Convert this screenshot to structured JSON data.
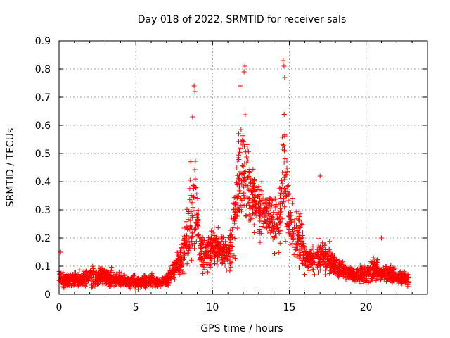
{
  "chart_data": {
    "type": "scatter",
    "title": "Day 018 of 2022, SRMTID for receiver sals",
    "xlabel": "GPS time / hours",
    "ylabel": "SRMTID / TECUs",
    "xlim": [
      0,
      24
    ],
    "ylim": [
      0,
      0.9
    ],
    "xticks": [
      0,
      5,
      10,
      15,
      20
    ],
    "xtick_labels": [
      "0",
      "5",
      "10",
      "15",
      "20"
    ],
    "yticks": [
      0,
      0.1,
      0.2,
      0.3,
      0.4,
      0.5,
      0.6,
      0.7,
      0.8,
      0.9
    ],
    "ytick_labels": [
      "0",
      "0.1",
      "0.2",
      "0.3",
      "0.4",
      "0.5",
      "0.6",
      "0.7",
      "0.8",
      "0.9"
    ],
    "grid": true,
    "marker": "+",
    "series_color": "#ff0000",
    "envelope": {
      "x": [
        0,
        0.2,
        1,
        2,
        3,
        4,
        5,
        6,
        6.5,
        7,
        7.5,
        8,
        8.3,
        8.6,
        8.9,
        9.2,
        9.6,
        10,
        10.5,
        11,
        11.4,
        11.8,
        12.1,
        12.5,
        13,
        13.5,
        14,
        14.4,
        14.7,
        15,
        15.3,
        15.7,
        16,
        16.5,
        17,
        17.5,
        18,
        19,
        20,
        20.5,
        21,
        21.5,
        22,
        22.5,
        22.8
      ],
      "center": [
        0.06,
        0.05,
        0.05,
        0.06,
        0.06,
        0.05,
        0.04,
        0.05,
        0.04,
        0.05,
        0.09,
        0.12,
        0.2,
        0.3,
        0.35,
        0.15,
        0.14,
        0.17,
        0.17,
        0.13,
        0.25,
        0.45,
        0.45,
        0.35,
        0.3,
        0.3,
        0.25,
        0.3,
        0.45,
        0.25,
        0.22,
        0.2,
        0.13,
        0.12,
        0.13,
        0.14,
        0.1,
        0.07,
        0.07,
        0.09,
        0.07,
        0.08,
        0.06,
        0.06,
        0.05
      ],
      "spread": [
        0.03,
        0.02,
        0.02,
        0.03,
        0.03,
        0.02,
        0.02,
        0.02,
        0.01,
        0.02,
        0.03,
        0.05,
        0.08,
        0.15,
        0.15,
        0.05,
        0.05,
        0.06,
        0.05,
        0.04,
        0.12,
        0.15,
        0.17,
        0.1,
        0.08,
        0.07,
        0.08,
        0.12,
        0.18,
        0.1,
        0.1,
        0.08,
        0.04,
        0.04,
        0.05,
        0.05,
        0.03,
        0.02,
        0.03,
        0.04,
        0.02,
        0.03,
        0.02,
        0.02,
        0.02
      ]
    },
    "peaks": [
      {
        "x": 8.8,
        "y": 0.74
      },
      {
        "x": 8.85,
        "y": 0.72
      },
      {
        "x": 8.7,
        "y": 0.63
      },
      {
        "x": 12.1,
        "y": 0.81
      },
      {
        "x": 12.05,
        "y": 0.79
      },
      {
        "x": 11.8,
        "y": 0.74
      },
      {
        "x": 14.6,
        "y": 0.83
      },
      {
        "x": 14.65,
        "y": 0.81
      },
      {
        "x": 14.7,
        "y": 0.77
      },
      {
        "x": 17.0,
        "y": 0.42
      },
      {
        "x": 21.0,
        "y": 0.2
      },
      {
        "x": 0.1,
        "y": 0.15
      }
    ],
    "n_points": 2600
  }
}
